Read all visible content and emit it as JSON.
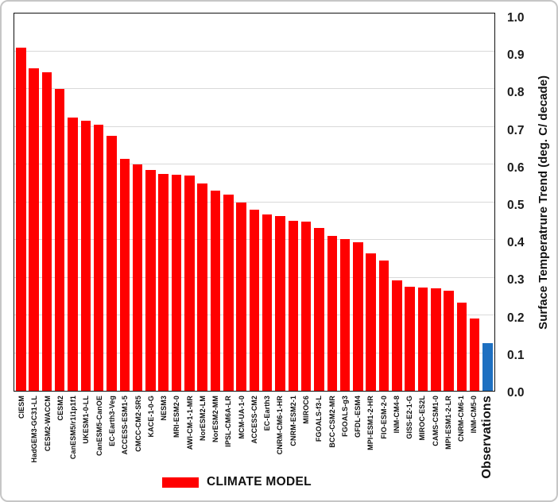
{
  "colors": {
    "bar_model": "#ff0000",
    "bar_observations": "#1e70c1",
    "gridline": "#d9d9d9",
    "plot_border": "#111111",
    "frame_border": "#c6c6c6",
    "text": "#1a1a1a"
  },
  "chart_data": {
    "type": "bar",
    "title": "",
    "ylabel": "Surface Temperatrure Trend (deg. C/ decade)",
    "xlabel": "",
    "ylim": [
      0.0,
      1.0
    ],
    "ytick_step": 0.1,
    "ytick_labels": [
      "1.0",
      "0.9",
      "0.8",
      "0.7",
      "0.6",
      "0.5",
      "0.4",
      "0.3",
      "0.2",
      "0.1",
      "0.0"
    ],
    "grid": "horizontal",
    "legend": {
      "label": "CLIMATE MODEL",
      "swatch_color": "#ff0000",
      "position": "bottom"
    },
    "observation_category": "Observations",
    "categories": [
      "CIESM",
      "HadGEM3-GC31-LL",
      "CESM2-WACCM",
      "CESM2",
      "CanESM5/r1i1p1f1",
      "UKESM1-0-LL",
      "CanESM5-CanOE",
      "EC-Earth3-Veg",
      "ACCESS-ESM1-5",
      "CMCC-CM2-SR5",
      "KACE-1-0-G",
      "NESM3",
      "MRI-ESM2-0",
      "AWI-CM-1-1-MR",
      "NorESM2-LM",
      "NorESM2-MM",
      "IPSL-CM6A-LR",
      "MCM-UA-1-0",
      "ACCESS-CM2",
      "EC-Earth3",
      "CNRM-CM6-1-HR",
      "CNRM-ESM2-1",
      "MIROC6",
      "FGOALS-f3-L",
      "BCC-CSM2-MR",
      "FGOALS-g3",
      "GFDL-ESM4",
      "MPI-ESM1-2-HR",
      "FIO-ESM-2-0",
      "INM-CM4-8",
      "GISS-E2-1-G",
      "MIROC-ES2L",
      "CAMS-CSM1-0",
      "MPI-ESM1-2-LR",
      "CNRM-CM6-1",
      "INM-CM5-0",
      "Observations"
    ],
    "values": [
      0.91,
      0.855,
      0.845,
      0.8,
      0.725,
      0.715,
      0.705,
      0.675,
      0.615,
      0.6,
      0.585,
      0.575,
      0.572,
      0.57,
      0.55,
      0.53,
      0.52,
      0.5,
      0.48,
      0.468,
      0.463,
      0.45,
      0.448,
      0.432,
      0.41,
      0.402,
      0.393,
      0.365,
      0.345,
      0.292,
      0.275,
      0.273,
      0.271,
      0.266,
      0.233,
      0.192,
      0.126
    ]
  }
}
